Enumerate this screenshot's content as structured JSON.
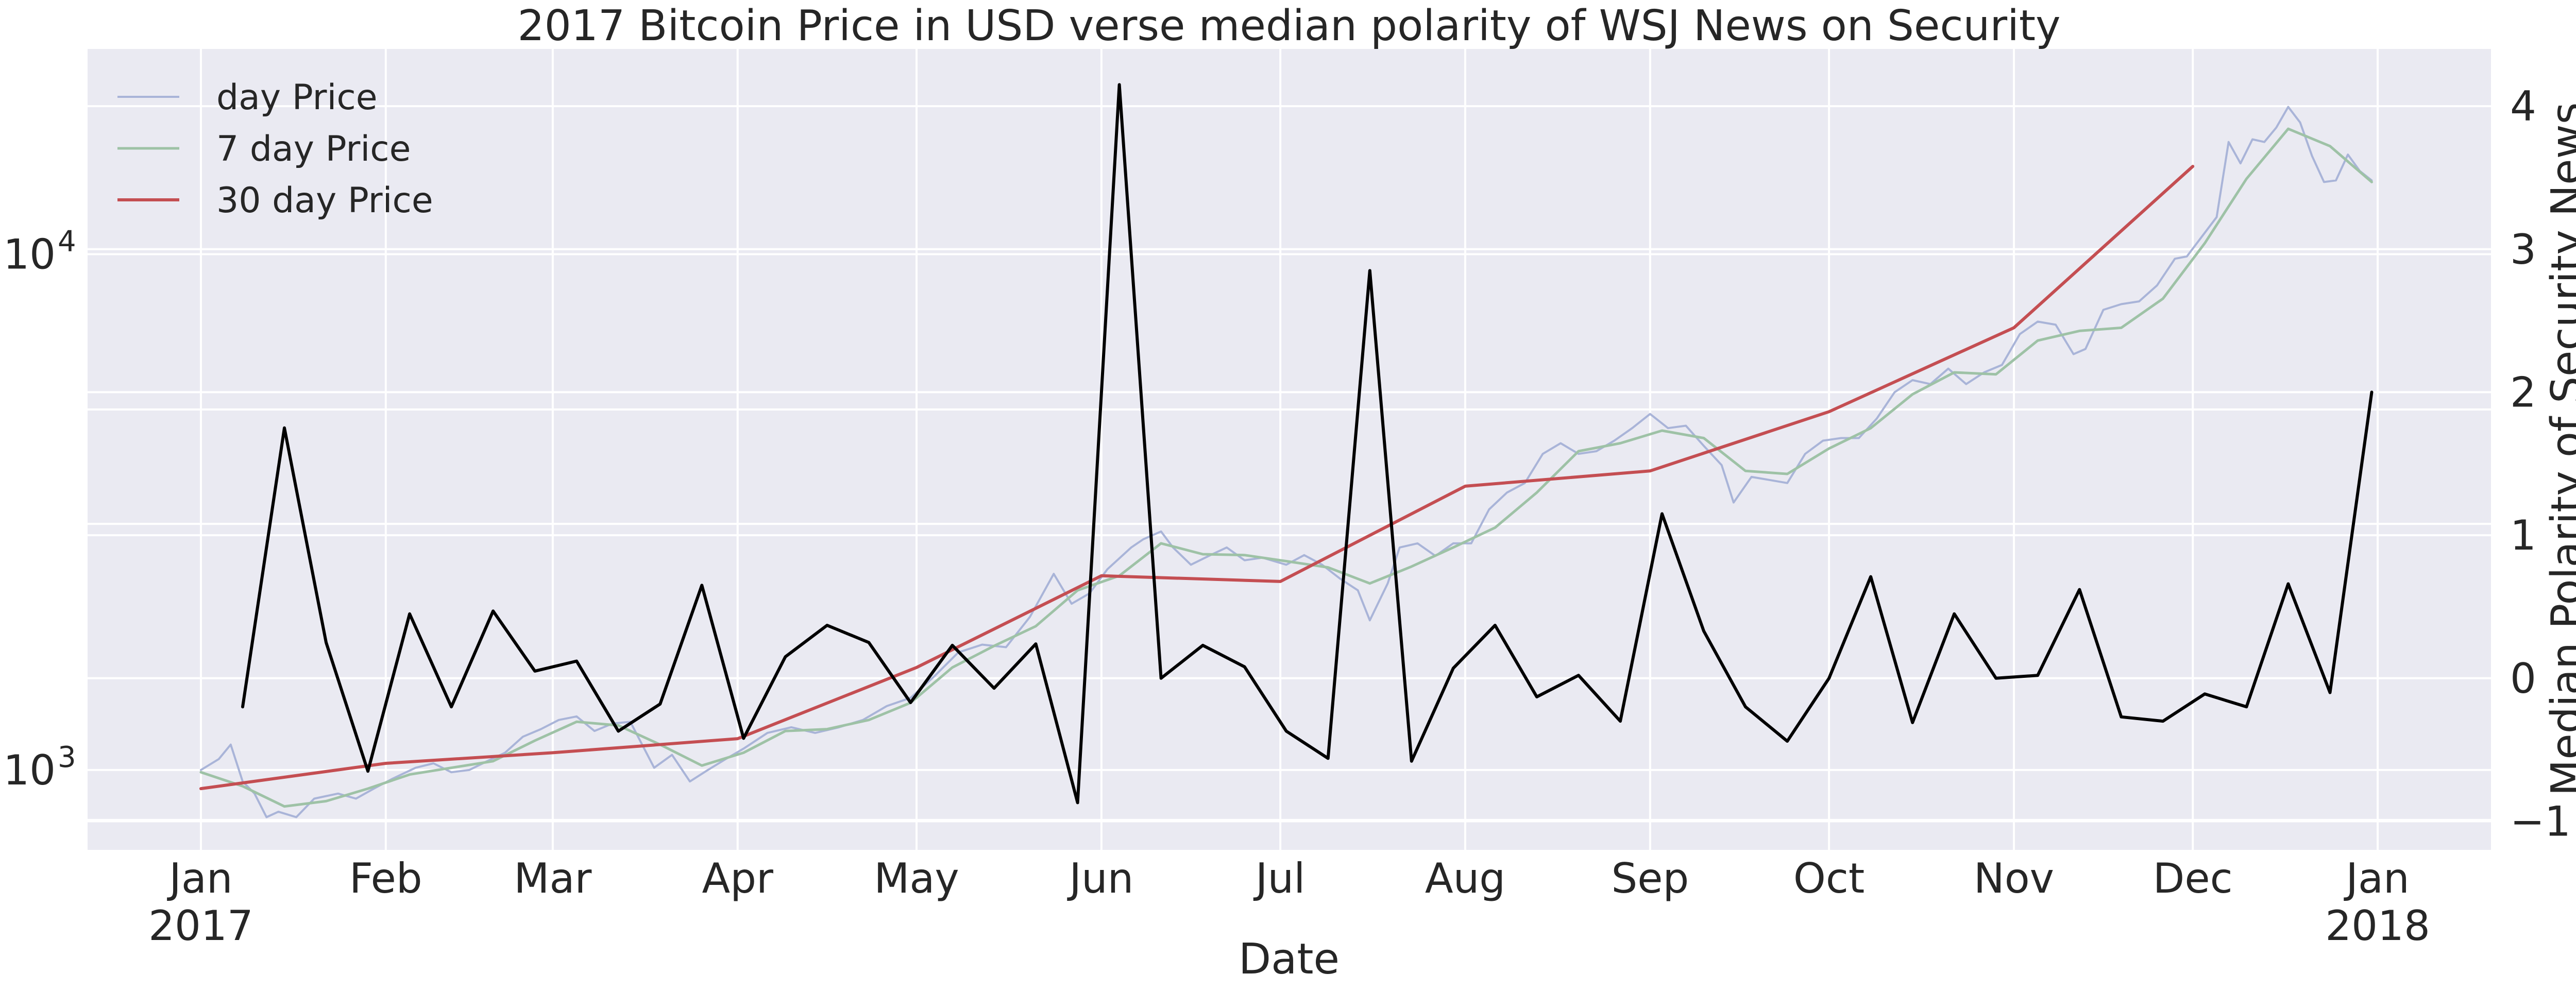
{
  "chart_data": {
    "type": "line",
    "title": "2017 Bitcoin Price in USD verse median polarity of WSJ News on Security",
    "xlabel": "Date",
    "ylabel_left": "",
    "ylabel_right": "Median Polarity of Security News",
    "left_axis": {
      "scale": "log",
      "ylim": [
        700,
        25000
      ],
      "major_ticks": [
        1000,
        10000
      ],
      "major_tick_labels": [
        "10^3",
        "10^4"
      ],
      "minor_gridlines": [
        800,
        3000,
        5000
      ]
    },
    "right_axis": {
      "scale": "linear",
      "ylim": [
        -1.2,
        4.4
      ],
      "ticks": [
        -1,
        0,
        1,
        2,
        3,
        4
      ],
      "tick_labels": [
        "−1",
        "0",
        "1",
        "2",
        "3",
        "4"
      ]
    },
    "x_axis": {
      "range": [
        "2016-12-13",
        "2018-01-20"
      ],
      "ticks": [
        {
          "date": "2017-01-01",
          "label": "Jan",
          "sublabel": "2017"
        },
        {
          "date": "2017-02-01",
          "label": "Feb",
          "sublabel": ""
        },
        {
          "date": "2017-03-01",
          "label": "Mar",
          "sublabel": ""
        },
        {
          "date": "2017-04-01",
          "label": "Apr",
          "sublabel": ""
        },
        {
          "date": "2017-05-01",
          "label": "May",
          "sublabel": ""
        },
        {
          "date": "2017-06-01",
          "label": "Jun",
          "sublabel": ""
        },
        {
          "date": "2017-07-01",
          "label": "Jul",
          "sublabel": ""
        },
        {
          "date": "2017-08-01",
          "label": "Aug",
          "sublabel": ""
        },
        {
          "date": "2017-09-01",
          "label": "Sep",
          "sublabel": ""
        },
        {
          "date": "2017-10-01",
          "label": "Oct",
          "sublabel": ""
        },
        {
          "date": "2017-11-01",
          "label": "Nov",
          "sublabel": ""
        },
        {
          "date": "2017-12-01",
          "label": "Dec",
          "sublabel": ""
        },
        {
          "date": "2018-01-01",
          "label": "Jan",
          "sublabel": "2018"
        }
      ]
    },
    "grid": true,
    "legend": {
      "placement": "top-left"
    },
    "series": [
      {
        "name": "day Price",
        "axis": "left",
        "color": "#a9b4d8",
        "width": 4,
        "points": [
          [
            "2017-01-01",
            1000
          ],
          [
            "2017-01-04",
            1050
          ],
          [
            "2017-01-06",
            1120
          ],
          [
            "2017-01-08",
            950
          ],
          [
            "2017-01-10",
            900
          ],
          [
            "2017-01-12",
            810
          ],
          [
            "2017-01-14",
            830
          ],
          [
            "2017-01-17",
            810
          ],
          [
            "2017-01-20",
            880
          ],
          [
            "2017-01-24",
            900
          ],
          [
            "2017-01-27",
            880
          ],
          [
            "2017-01-30",
            920
          ],
          [
            "2017-02-02",
            960
          ],
          [
            "2017-02-06",
            1010
          ],
          [
            "2017-02-09",
            1030
          ],
          [
            "2017-02-12",
            990
          ],
          [
            "2017-02-15",
            1000
          ],
          [
            "2017-02-18",
            1040
          ],
          [
            "2017-02-21",
            1080
          ],
          [
            "2017-02-24",
            1160
          ],
          [
            "2017-02-27",
            1200
          ],
          [
            "2017-03-02",
            1250
          ],
          [
            "2017-03-05",
            1270
          ],
          [
            "2017-03-08",
            1190
          ],
          [
            "2017-03-11",
            1230
          ],
          [
            "2017-03-14",
            1240
          ],
          [
            "2017-03-18",
            1010
          ],
          [
            "2017-03-21",
            1070
          ],
          [
            "2017-03-24",
            950
          ],
          [
            "2017-03-27",
            1000
          ],
          [
            "2017-03-30",
            1050
          ],
          [
            "2017-04-02",
            1100
          ],
          [
            "2017-04-06",
            1180
          ],
          [
            "2017-04-10",
            1210
          ],
          [
            "2017-04-14",
            1180
          ],
          [
            "2017-04-18",
            1210
          ],
          [
            "2017-04-22",
            1250
          ],
          [
            "2017-04-26",
            1330
          ],
          [
            "2017-04-30",
            1380
          ],
          [
            "2017-05-04",
            1520
          ],
          [
            "2017-05-08",
            1690
          ],
          [
            "2017-05-12",
            1750
          ],
          [
            "2017-05-16",
            1730
          ],
          [
            "2017-05-20",
            1980
          ],
          [
            "2017-05-24",
            2400
          ],
          [
            "2017-05-27",
            2100
          ],
          [
            "2017-05-30",
            2200
          ],
          [
            "2017-06-02",
            2450
          ],
          [
            "2017-06-06",
            2700
          ],
          [
            "2017-06-08",
            2800
          ],
          [
            "2017-06-11",
            2900
          ],
          [
            "2017-06-13",
            2700
          ],
          [
            "2017-06-16",
            2500
          ],
          [
            "2017-06-19",
            2600
          ],
          [
            "2017-06-22",
            2700
          ],
          [
            "2017-06-25",
            2550
          ],
          [
            "2017-06-28",
            2580
          ],
          [
            "2017-07-02",
            2500
          ],
          [
            "2017-07-05",
            2610
          ],
          [
            "2017-07-08",
            2500
          ],
          [
            "2017-07-11",
            2350
          ],
          [
            "2017-07-14",
            2230
          ],
          [
            "2017-07-16",
            1950
          ],
          [
            "2017-07-19",
            2300
          ],
          [
            "2017-07-21",
            2700
          ],
          [
            "2017-07-24",
            2750
          ],
          [
            "2017-07-27",
            2600
          ],
          [
            "2017-07-30",
            2750
          ],
          [
            "2017-08-02",
            2750
          ],
          [
            "2017-08-05",
            3200
          ],
          [
            "2017-08-08",
            3450
          ],
          [
            "2017-08-11",
            3600
          ],
          [
            "2017-08-14",
            4100
          ],
          [
            "2017-08-17",
            4300
          ],
          [
            "2017-08-20",
            4100
          ],
          [
            "2017-08-23",
            4150
          ],
          [
            "2017-08-26",
            4350
          ],
          [
            "2017-08-29",
            4600
          ],
          [
            "2017-09-01",
            4900
          ],
          [
            "2017-09-04",
            4600
          ],
          [
            "2017-09-07",
            4650
          ],
          [
            "2017-09-10",
            4250
          ],
          [
            "2017-09-13",
            3900
          ],
          [
            "2017-09-15",
            3300
          ],
          [
            "2017-09-18",
            3700
          ],
          [
            "2017-09-21",
            3650
          ],
          [
            "2017-09-24",
            3600
          ],
          [
            "2017-09-27",
            4100
          ],
          [
            "2017-09-30",
            4350
          ],
          [
            "2017-10-03",
            4400
          ],
          [
            "2017-10-06",
            4400
          ],
          [
            "2017-10-09",
            4800
          ],
          [
            "2017-10-12",
            5400
          ],
          [
            "2017-10-15",
            5700
          ],
          [
            "2017-10-18",
            5600
          ],
          [
            "2017-10-21",
            6000
          ],
          [
            "2017-10-24",
            5600
          ],
          [
            "2017-10-27",
            5900
          ],
          [
            "2017-10-30",
            6100
          ],
          [
            "2017-11-02",
            7000
          ],
          [
            "2017-11-05",
            7400
          ],
          [
            "2017-11-08",
            7300
          ],
          [
            "2017-11-11",
            6400
          ],
          [
            "2017-11-13",
            6550
          ],
          [
            "2017-11-16",
            7800
          ],
          [
            "2017-11-19",
            8000
          ],
          [
            "2017-11-22",
            8100
          ],
          [
            "2017-11-25",
            8700
          ],
          [
            "2017-11-28",
            9800
          ],
          [
            "2017-11-30",
            9900
          ],
          [
            "2017-12-03",
            11000
          ],
          [
            "2017-12-05",
            11800
          ],
          [
            "2017-12-07",
            16500
          ],
          [
            "2017-12-09",
            15000
          ],
          [
            "2017-12-11",
            16700
          ],
          [
            "2017-12-13",
            16500
          ],
          [
            "2017-12-15",
            17600
          ],
          [
            "2017-12-17",
            19300
          ],
          [
            "2017-12-19",
            18000
          ],
          [
            "2017-12-21",
            15500
          ],
          [
            "2017-12-23",
            13800
          ],
          [
            "2017-12-25",
            13900
          ],
          [
            "2017-12-27",
            15600
          ],
          [
            "2017-12-29",
            14500
          ],
          [
            "2017-12-31",
            13900
          ]
        ]
      },
      {
        "name": "7 day Price",
        "axis": "left",
        "color": "#9ec2a6",
        "width": 5,
        "points": [
          [
            "2017-01-01",
            990
          ],
          [
            "2017-01-08",
            930
          ],
          [
            "2017-01-15",
            850
          ],
          [
            "2017-01-22",
            870
          ],
          [
            "2017-01-29",
            920
          ],
          [
            "2017-02-05",
            980
          ],
          [
            "2017-02-12",
            1010
          ],
          [
            "2017-02-19",
            1040
          ],
          [
            "2017-02-26",
            1140
          ],
          [
            "2017-03-05",
            1240
          ],
          [
            "2017-03-12",
            1220
          ],
          [
            "2017-03-19",
            1120
          ],
          [
            "2017-03-26",
            1020
          ],
          [
            "2017-04-02",
            1080
          ],
          [
            "2017-04-09",
            1190
          ],
          [
            "2017-04-16",
            1200
          ],
          [
            "2017-04-23",
            1250
          ],
          [
            "2017-04-30",
            1350
          ],
          [
            "2017-05-07",
            1580
          ],
          [
            "2017-05-14",
            1740
          ],
          [
            "2017-05-21",
            1900
          ],
          [
            "2017-05-28",
            2230
          ],
          [
            "2017-06-04",
            2380
          ],
          [
            "2017-06-11",
            2750
          ],
          [
            "2017-06-18",
            2620
          ],
          [
            "2017-06-25",
            2610
          ],
          [
            "2017-07-02",
            2540
          ],
          [
            "2017-07-09",
            2470
          ],
          [
            "2017-07-16",
            2300
          ],
          [
            "2017-07-23",
            2480
          ],
          [
            "2017-07-30",
            2700
          ],
          [
            "2017-08-06",
            2950
          ],
          [
            "2017-08-13",
            3450
          ],
          [
            "2017-08-20",
            4150
          ],
          [
            "2017-08-27",
            4300
          ],
          [
            "2017-09-03",
            4550
          ],
          [
            "2017-09-10",
            4400
          ],
          [
            "2017-09-17",
            3800
          ],
          [
            "2017-09-24",
            3750
          ],
          [
            "2017-10-01",
            4200
          ],
          [
            "2017-10-08",
            4600
          ],
          [
            "2017-10-15",
            5350
          ],
          [
            "2017-10-22",
            5900
          ],
          [
            "2017-10-29",
            5850
          ],
          [
            "2017-11-05",
            6800
          ],
          [
            "2017-11-12",
            7100
          ],
          [
            "2017-11-19",
            7200
          ],
          [
            "2017-11-26",
            8200
          ],
          [
            "2017-12-03",
            10500
          ],
          [
            "2017-12-10",
            14000
          ],
          [
            "2017-12-17",
            17500
          ],
          [
            "2017-12-24",
            16200
          ],
          [
            "2017-12-31",
            13800
          ]
        ]
      },
      {
        "name": "30 day Price",
        "axis": "left",
        "color": "#c44e52",
        "width": 6,
        "points": [
          [
            "2017-01-01",
            920
          ],
          [
            "2017-02-01",
            1030
          ],
          [
            "2017-03-01",
            1080
          ],
          [
            "2017-04-01",
            1150
          ],
          [
            "2017-05-01",
            1580
          ],
          [
            "2017-06-01",
            2380
          ],
          [
            "2017-07-01",
            2320
          ],
          [
            "2017-08-01",
            3550
          ],
          [
            "2017-09-01",
            3800
          ],
          [
            "2017-10-01",
            4950
          ],
          [
            "2017-11-01",
            7200
          ],
          [
            "2017-12-01",
            14800
          ]
        ]
      },
      {
        "name": "",
        "axis": "right",
        "color": "#000000",
        "width": 6,
        "points": [
          [
            "2017-01-08",
            -0.2
          ],
          [
            "2017-01-15",
            1.75
          ],
          [
            "2017-01-22",
            0.25
          ],
          [
            "2017-01-29",
            -0.65
          ],
          [
            "2017-02-05",
            0.45
          ],
          [
            "2017-02-12",
            -0.2
          ],
          [
            "2017-02-19",
            0.47
          ],
          [
            "2017-02-26",
            0.05
          ],
          [
            "2017-03-05",
            0.12
          ],
          [
            "2017-03-12",
            -0.37
          ],
          [
            "2017-03-19",
            -0.18
          ],
          [
            "2017-03-26",
            0.65
          ],
          [
            "2017-04-02",
            -0.42
          ],
          [
            "2017-04-09",
            0.15
          ],
          [
            "2017-04-16",
            0.37
          ],
          [
            "2017-04-23",
            0.25
          ],
          [
            "2017-04-30",
            -0.17
          ],
          [
            "2017-05-07",
            0.23
          ],
          [
            "2017-05-14",
            -0.07
          ],
          [
            "2017-05-21",
            0.24
          ],
          [
            "2017-05-28",
            -0.87
          ],
          [
            "2017-06-04",
            4.15
          ],
          [
            "2017-06-11",
            0.0
          ],
          [
            "2017-06-18",
            0.23
          ],
          [
            "2017-06-25",
            0.08
          ],
          [
            "2017-07-02",
            -0.37
          ],
          [
            "2017-07-09",
            -0.56
          ],
          [
            "2017-07-16",
            2.85
          ],
          [
            "2017-07-23",
            -0.58
          ],
          [
            "2017-07-30",
            0.07
          ],
          [
            "2017-08-06",
            0.37
          ],
          [
            "2017-08-13",
            -0.13
          ],
          [
            "2017-08-20",
            0.02
          ],
          [
            "2017-08-27",
            -0.3
          ],
          [
            "2017-09-03",
            1.15
          ],
          [
            "2017-09-10",
            0.33
          ],
          [
            "2017-09-17",
            -0.2
          ],
          [
            "2017-09-24",
            -0.44
          ],
          [
            "2017-10-01",
            0.0
          ],
          [
            "2017-10-08",
            0.71
          ],
          [
            "2017-10-15",
            -0.31
          ],
          [
            "2017-10-22",
            0.45
          ],
          [
            "2017-10-29",
            0.0
          ],
          [
            "2017-11-05",
            0.02
          ],
          [
            "2017-11-12",
            0.62
          ],
          [
            "2017-11-19",
            -0.27
          ],
          [
            "2017-11-26",
            -0.3
          ],
          [
            "2017-12-03",
            -0.11
          ],
          [
            "2017-12-10",
            -0.2
          ],
          [
            "2017-12-17",
            0.66
          ],
          [
            "2017-12-24",
            -0.1
          ],
          [
            "2017-12-31",
            2.0
          ]
        ]
      }
    ]
  }
}
